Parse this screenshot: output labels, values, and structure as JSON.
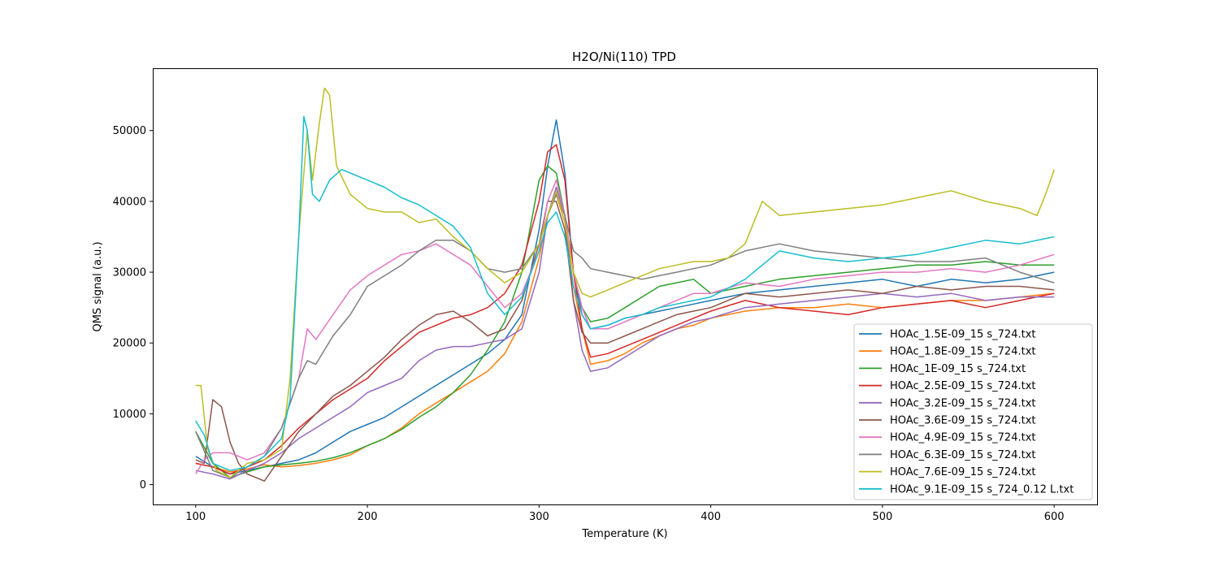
{
  "chart_data": {
    "type": "line",
    "title": "H2O/Ni(110) TPD",
    "xlabel": "Temperature (K)",
    "ylabel": "QMS signal (a.u.)",
    "xlim": [
      75,
      625
    ],
    "ylim": [
      -2800,
      58800
    ],
    "xticks": [
      100,
      200,
      300,
      400,
      500,
      600
    ],
    "yticks": [
      0,
      10000,
      20000,
      30000,
      40000,
      50000
    ],
    "xtick_labels": [
      "100",
      "200",
      "300",
      "400",
      "500",
      "600"
    ],
    "ytick_labels": [
      "0",
      "10000",
      "20000",
      "30000",
      "40000",
      "50000"
    ],
    "grid": false,
    "legend_position": "lower-right",
    "series": [
      {
        "name": "HOAc_1.5E-09_15 s_724.txt",
        "color": "#1f77b4",
        "x": [
          100,
          110,
          120,
          130,
          140,
          150,
          160,
          170,
          180,
          190,
          200,
          210,
          220,
          230,
          240,
          250,
          260,
          270,
          280,
          290,
          300,
          305,
          310,
          315,
          320,
          325,
          330,
          340,
          350,
          360,
          370,
          380,
          390,
          400,
          420,
          440,
          460,
          480,
          500,
          520,
          540,
          560,
          580,
          600
        ],
        "y": [
          4000,
          2500,
          1500,
          2000,
          2500,
          3000,
          3500,
          4500,
          6000,
          7500,
          8500,
          9500,
          11000,
          12500,
          14000,
          15500,
          17000,
          18500,
          20500,
          24000,
          36000,
          45000,
          51500,
          44000,
          30000,
          24000,
          22000,
          22500,
          23500,
          24000,
          24500,
          25000,
          25500,
          26000,
          27000,
          27500,
          28000,
          28500,
          29000,
          28000,
          29000,
          28500,
          29000,
          30000
        ]
      },
      {
        "name": "HOAc_1.8E-09_15 s_724.txt",
        "color": "#ff7f0e",
        "x": [
          100,
          110,
          120,
          130,
          140,
          150,
          160,
          170,
          180,
          190,
          200,
          210,
          220,
          230,
          240,
          250,
          260,
          270,
          280,
          290,
          300,
          305,
          310,
          315,
          320,
          325,
          330,
          340,
          350,
          360,
          370,
          380,
          390,
          400,
          420,
          440,
          460,
          480,
          500,
          520,
          540,
          560,
          580,
          600
        ],
        "y": [
          3000,
          2500,
          1800,
          2200,
          2800,
          2500,
          2700,
          3000,
          3500,
          4200,
          5500,
          6500,
          8000,
          10000,
          11500,
          13000,
          14500,
          16000,
          18500,
          23000,
          32000,
          38000,
          41000,
          37000,
          28000,
          22000,
          17000,
          17500,
          18500,
          20000,
          21000,
          22000,
          22500,
          23500,
          24500,
          25000,
          25000,
          25500,
          25000,
          25500,
          26000,
          26000,
          26500,
          27000
        ]
      },
      {
        "name": "HOAc_1E-09_15 s_724.txt",
        "color": "#2ca02c",
        "x": [
          100,
          110,
          120,
          130,
          140,
          150,
          160,
          170,
          180,
          190,
          200,
          210,
          220,
          230,
          240,
          250,
          260,
          270,
          280,
          290,
          300,
          305,
          310,
          315,
          320,
          325,
          330,
          340,
          350,
          360,
          370,
          380,
          390,
          400,
          420,
          440,
          460,
          480,
          500,
          520,
          540,
          560,
          580,
          600
        ],
        "y": [
          7500,
          3000,
          1000,
          1800,
          2500,
          2800,
          3000,
          3300,
          3800,
          4500,
          5500,
          6500,
          7800,
          9500,
          11000,
          13000,
          15500,
          19000,
          23000,
          30000,
          43000,
          45000,
          44000,
          38000,
          30000,
          25000,
          23000,
          23500,
          25000,
          26500,
          28000,
          28500,
          29000,
          27000,
          28000,
          29000,
          29500,
          30000,
          30500,
          31000,
          31000,
          31500,
          31000,
          31000
        ]
      },
      {
        "name": "HOAc_2.5E-09_15 s_724.txt",
        "color": "#d62728",
        "x": [
          100,
          110,
          120,
          130,
          140,
          150,
          160,
          170,
          180,
          190,
          200,
          210,
          220,
          230,
          240,
          250,
          260,
          270,
          280,
          290,
          300,
          305,
          310,
          315,
          320,
          325,
          330,
          340,
          350,
          360,
          370,
          380,
          390,
          400,
          420,
          440,
          460,
          480,
          500,
          520,
          540,
          560,
          580,
          600
        ],
        "y": [
          3000,
          2500,
          1500,
          2500,
          3500,
          5500,
          8000,
          10000,
          12000,
          13500,
          15000,
          17500,
          19500,
          21500,
          22500,
          23500,
          24000,
          25000,
          27000,
          31000,
          40000,
          47000,
          48000,
          43000,
          30000,
          22000,
          18000,
          18500,
          19500,
          20500,
          21500,
          22500,
          23500,
          24500,
          26000,
          25000,
          24500,
          24000,
          25000,
          25500,
          26000,
          25000,
          26000,
          27000
        ]
      },
      {
        "name": "HOAc_3.2E-09_15 s_724.txt",
        "color": "#9467bd",
        "x": [
          100,
          110,
          120,
          130,
          140,
          150,
          160,
          170,
          180,
          190,
          200,
          210,
          220,
          230,
          240,
          250,
          260,
          270,
          280,
          290,
          300,
          305,
          310,
          315,
          320,
          325,
          330,
          340,
          350,
          360,
          370,
          380,
          390,
          400,
          420,
          440,
          460,
          480,
          500,
          520,
          540,
          560,
          580,
          600
        ],
        "y": [
          2000,
          1500,
          800,
          2000,
          3000,
          4500,
          6500,
          8000,
          9500,
          11000,
          13000,
          14000,
          15000,
          17500,
          19000,
          19500,
          19500,
          20000,
          20500,
          22000,
          30000,
          38000,
          42000,
          38000,
          26000,
          19000,
          16000,
          16500,
          18000,
          19500,
          21000,
          22000,
          23000,
          23500,
          25000,
          25500,
          26000,
          26500,
          27000,
          26500,
          27000,
          26000,
          26500,
          26500
        ]
      },
      {
        "name": "HOAc_3.6E-09_15 s_724.txt",
        "color": "#8c564b",
        "x": [
          100,
          105,
          110,
          115,
          120,
          125,
          130,
          140,
          150,
          160,
          170,
          180,
          190,
          200,
          210,
          220,
          230,
          240,
          250,
          260,
          270,
          280,
          290,
          300,
          305,
          310,
          315,
          320,
          325,
          330,
          340,
          350,
          360,
          370,
          380,
          390,
          400,
          420,
          440,
          460,
          480,
          500,
          520,
          540,
          560,
          580,
          600
        ],
        "y": [
          3500,
          3000,
          12000,
          11000,
          6000,
          3000,
          1500,
          500,
          4000,
          7500,
          10000,
          12500,
          14000,
          16000,
          18000,
          20500,
          22500,
          24000,
          24500,
          23000,
          21000,
          22000,
          26000,
          34000,
          40000,
          40000,
          36000,
          26000,
          21500,
          20000,
          20000,
          21000,
          22000,
          23000,
          24000,
          24500,
          25000,
          27000,
          26500,
          27000,
          27500,
          27000,
          28000,
          27500,
          28000,
          28000,
          27500
        ]
      },
      {
        "name": "HOAc_4.9E-09_15 s_724.txt",
        "color": "#e377c2",
        "x": [
          100,
          105,
          110,
          120,
          130,
          140,
          150,
          160,
          165,
          170,
          180,
          190,
          200,
          210,
          220,
          230,
          240,
          250,
          260,
          270,
          280,
          290,
          300,
          305,
          310,
          315,
          320,
          325,
          330,
          340,
          350,
          360,
          370,
          380,
          390,
          400,
          420,
          440,
          460,
          480,
          500,
          520,
          540,
          560,
          580,
          600
        ],
        "y": [
          1500,
          3500,
          4500,
          4500,
          3500,
          4500,
          8000,
          15000,
          22000,
          20500,
          24000,
          27500,
          29500,
          31000,
          32500,
          33000,
          34000,
          32500,
          31000,
          28000,
          25000,
          27000,
          33000,
          40000,
          43000,
          38000,
          30000,
          25000,
          22000,
          22000,
          23000,
          24000,
          25000,
          26000,
          27000,
          27000,
          28500,
          28000,
          29000,
          29500,
          30000,
          30000,
          30500,
          30000,
          31000,
          32500
        ]
      },
      {
        "name": "HOAc_6.3E-09_15 s_724.txt",
        "color": "#7f7f7f",
        "x": [
          100,
          110,
          120,
          130,
          140,
          150,
          160,
          165,
          170,
          180,
          190,
          200,
          210,
          220,
          230,
          240,
          250,
          260,
          270,
          280,
          290,
          300,
          305,
          310,
          315,
          320,
          325,
          330,
          340,
          350,
          360,
          370,
          380,
          390,
          400,
          420,
          440,
          460,
          480,
          500,
          520,
          540,
          560,
          580,
          600
        ],
        "y": [
          7500,
          2000,
          1000,
          2500,
          4000,
          8000,
          15000,
          17500,
          17000,
          21000,
          24000,
          28000,
          29500,
          31000,
          33000,
          34500,
          34500,
          33000,
          30500,
          30000,
          30500,
          34000,
          38000,
          41000,
          38000,
          33000,
          32000,
          30500,
          30000,
          29500,
          29000,
          29500,
          30000,
          30500,
          31000,
          33000,
          34000,
          33000,
          32500,
          32000,
          31500,
          31500,
          32000,
          30000,
          28500
        ]
      },
      {
        "name": "HOAc_7.6E-09_15 s_724.txt",
        "color": "#bcbd22",
        "x": [
          100,
          103,
          107,
          112,
          120,
          130,
          140,
          150,
          155,
          160,
          165,
          168,
          172,
          175,
          178,
          182,
          190,
          200,
          210,
          220,
          230,
          240,
          250,
          260,
          270,
          280,
          290,
          300,
          305,
          310,
          315,
          320,
          325,
          330,
          340,
          350,
          360,
          370,
          380,
          390,
          400,
          410,
          420,
          430,
          440,
          460,
          480,
          500,
          520,
          540,
          560,
          580,
          590,
          595,
          600
        ],
        "y": [
          14000,
          14000,
          5000,
          2000,
          1000,
          3000,
          3500,
          5000,
          15000,
          35000,
          50000,
          43000,
          51000,
          56000,
          55000,
          45000,
          41000,
          39000,
          38500,
          38500,
          37000,
          37500,
          35000,
          33000,
          30500,
          28500,
          30000,
          34000,
          38000,
          41500,
          37000,
          30000,
          27000,
          26500,
          27500,
          28500,
          29500,
          30500,
          31000,
          31500,
          31500,
          32000,
          34000,
          40000,
          38000,
          38500,
          39000,
          39500,
          40500,
          41500,
          40000,
          39000,
          38000,
          41000,
          44500
        ]
      },
      {
        "name": "HOAc_9.1E-09_15 s_724_0.12 L.txt",
        "color": "#17becf",
        "x": [
          100,
          105,
          110,
          120,
          130,
          140,
          150,
          155,
          160,
          163,
          165,
          168,
          172,
          178,
          185,
          190,
          200,
          210,
          220,
          230,
          240,
          250,
          260,
          270,
          280,
          290,
          300,
          305,
          310,
          315,
          320,
          325,
          330,
          340,
          350,
          360,
          370,
          380,
          390,
          400,
          420,
          440,
          460,
          480,
          500,
          520,
          540,
          560,
          580,
          600
        ],
        "y": [
          9000,
          7000,
          3000,
          2000,
          2500,
          4000,
          6500,
          12000,
          35000,
          52000,
          50000,
          41000,
          40000,
          43000,
          44500,
          44000,
          43000,
          42000,
          40500,
          39500,
          38000,
          36500,
          33500,
          27000,
          24000,
          26500,
          33000,
          37000,
          38500,
          35000,
          28000,
          24000,
          22000,
          22500,
          23500,
          24000,
          25000,
          25500,
          26000,
          26500,
          29000,
          33000,
          32000,
          31500,
          32000,
          32500,
          33500,
          34500,
          34000,
          35000
        ]
      }
    ]
  }
}
